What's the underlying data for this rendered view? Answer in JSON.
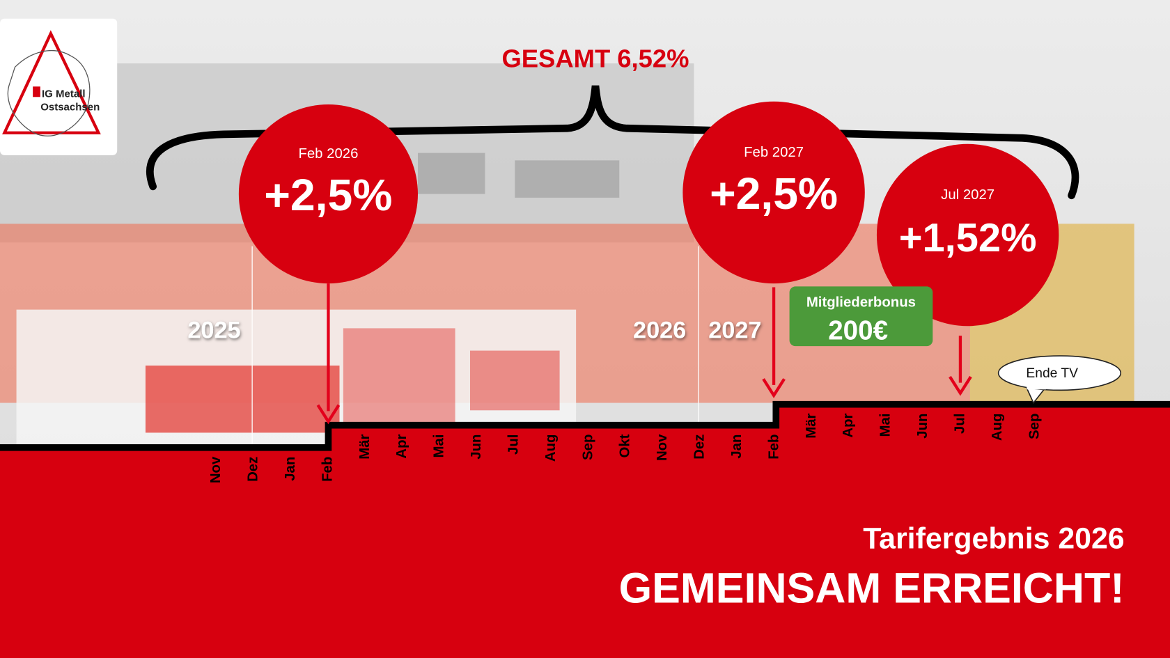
{
  "logo": {
    "line1": "IG Metall",
    "line2": "Ostsachsen"
  },
  "total": "GESAMT 6,52%",
  "increases": [
    {
      "date": "Feb 2026",
      "value": "+2,5%"
    },
    {
      "date": "Feb 2027",
      "value": "+2,5%"
    },
    {
      "date": "Jul 2027",
      "value": "+1,52%"
    }
  ],
  "bonus": {
    "label": "Mitgliederbonus",
    "amount": "200€"
  },
  "years": [
    "2025",
    "2026",
    "2027"
  ],
  "months": [
    "Nov",
    "Dez",
    "Jan",
    "Feb",
    "Mär",
    "Apr",
    "Mai",
    "Jun",
    "Jul",
    "Aug",
    "Sep",
    "Okt",
    "Nov",
    "Dez",
    "Jan",
    "Feb",
    "Mär",
    "Apr",
    "Mai",
    "Jun",
    "Jul",
    "Aug",
    "Sep"
  ],
  "end_label": "Ende TV",
  "title": {
    "subtitle": "Tarifergebnis 2026",
    "headline": "GEMEINSAM ERREICHT!"
  }
}
